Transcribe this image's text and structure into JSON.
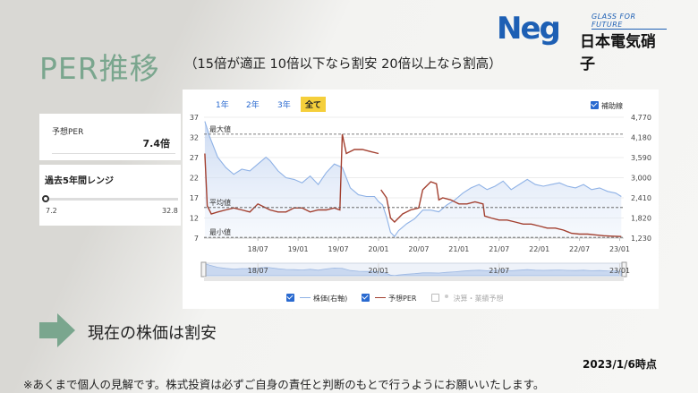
{
  "slide": {
    "title": "PER推移",
    "subtitle": "（15倍が適正 10倍以下なら割安 20倍以上なら割高）",
    "logo_mark": "Neg",
    "logo_tagline": "GLASS FOR FUTURE",
    "logo_name": "日本電気硝子",
    "conclusion": "現在の株価は割安",
    "date": "2023/1/6時点",
    "disclaimer": "※あくまで個人の見解です。株式投資は必ずご自身の責任と判断のもとで行うようにお願いいたします。"
  },
  "kpi": {
    "label": "予想PER",
    "value": "7.4倍"
  },
  "range": {
    "title": "過去5年間レンジ",
    "min": "7.2",
    "max": "32.8",
    "current": 7.4
  },
  "tabs": [
    {
      "label": "1年",
      "active": false
    },
    {
      "label": "2年",
      "active": false
    },
    {
      "label": "3年",
      "active": false
    },
    {
      "label": "全て",
      "active": true
    }
  ],
  "aux_label": "補助線",
  "legend": [
    {
      "label": "株価(右軸)",
      "color": "#8fb2e6",
      "checked": true
    },
    {
      "label": "予想PER",
      "color": "#a34030",
      "checked": true
    },
    {
      "label": "決算・業績予想",
      "color": "#bbbbbb",
      "checked": false
    }
  ],
  "chart_data": {
    "type": "line",
    "left_axis_ticks": [
      "37",
      "32",
      "27",
      "22",
      "17",
      "12",
      "7"
    ],
    "right_axis_ticks": [
      "4,770",
      "4,180",
      "3,590",
      "3,000",
      "2,410",
      "1,820",
      "1,230"
    ],
    "ylim_left": [
      7,
      37
    ],
    "ylim_right": [
      1230,
      4770
    ],
    "xlim": [
      2017.83,
      2023.05
    ],
    "x_ticks": [
      {
        "label": "18/07",
        "x": 2018.5
      },
      {
        "label": "19/01",
        "x": 2019.0
      },
      {
        "label": "19/07",
        "x": 2019.5
      },
      {
        "label": "20/01",
        "x": 2020.0
      },
      {
        "label": "20/07",
        "x": 2020.5
      },
      {
        "label": "21/01",
        "x": 2021.0
      },
      {
        "label": "21/07",
        "x": 2021.5
      },
      {
        "label": "22/01",
        "x": 2022.0
      },
      {
        "label": "22/07",
        "x": 2022.5
      },
      {
        "label": "23/01",
        "x": 2023.0
      }
    ],
    "navigator_ticks": [
      {
        "label": "18/07",
        "x": 2018.5
      },
      {
        "label": "20/01",
        "x": 2020.0
      },
      {
        "label": "21/07",
        "x": 2021.5
      },
      {
        "label": "23/01",
        "x": 2023.0
      }
    ],
    "reference_lines": [
      {
        "label": "最大値",
        "value": 32.8
      },
      {
        "label": "平均値",
        "value": 14.6
      },
      {
        "label": "最小値",
        "value": 7.2
      }
    ],
    "series": [
      {
        "name": "株価(右軸)",
        "axis": "right",
        "x": [
          2017.84,
          2017.9,
          2018.0,
          2018.1,
          2018.2,
          2018.3,
          2018.4,
          2018.5,
          2018.6,
          2018.65,
          2018.75,
          2018.85,
          2018.95,
          2019.05,
          2019.15,
          2019.25,
          2019.35,
          2019.45,
          2019.55,
          2019.65,
          2019.75,
          2019.85,
          2019.95,
          2020.0,
          2020.05,
          2020.1,
          2020.15,
          2020.2,
          2020.25,
          2020.35,
          2020.45,
          2020.55,
          2020.65,
          2020.75,
          2020.85,
          2020.95,
          2021.05,
          2021.15,
          2021.25,
          2021.35,
          2021.45,
          2021.55,
          2021.65,
          2021.75,
          2021.85,
          2021.95,
          2022.05,
          2022.15,
          2022.25,
          2022.35,
          2022.45,
          2022.55,
          2022.65,
          2022.75,
          2022.85,
          2022.95,
          2023.02
        ],
        "y": [
          4650,
          4200,
          3600,
          3300,
          3100,
          3250,
          3200,
          3400,
          3600,
          3500,
          3200,
          3000,
          2950,
          2850,
          3050,
          2800,
          3150,
          3400,
          3300,
          2700,
          2500,
          2450,
          2450,
          2300,
          2200,
          1850,
          1400,
          1280,
          1450,
          1650,
          1800,
          2050,
          2050,
          2000,
          2200,
          2350,
          2550,
          2700,
          2800,
          2650,
          2750,
          2900,
          2650,
          2800,
          2950,
          2800,
          2750,
          2800,
          2850,
          2750,
          2700,
          2800,
          2650,
          2700,
          2600,
          2550,
          2450
        ]
      },
      {
        "name": "予想PER",
        "axis": "left",
        "x": [
          2017.84,
          2017.87,
          2017.92,
          2018.0,
          2018.1,
          2018.2,
          2018.3,
          2018.4,
          2018.5,
          2018.6,
          2018.65,
          2018.75,
          2018.85,
          2018.95,
          2019.05,
          2019.15,
          2019.25,
          2019.35,
          2019.45,
          2019.52,
          2019.55,
          2019.6,
          2019.7,
          2019.8,
          2019.9,
          2020.0,
          2020.03,
          2020.03,
          2020.1,
          2020.15,
          2020.2,
          2020.3,
          2020.4,
          2020.5,
          2020.55,
          2020.65,
          2020.72,
          2020.75,
          2020.8,
          2020.9,
          2021.0,
          2021.1,
          2021.2,
          2021.3,
          2021.32,
          2021.4,
          2021.5,
          2021.6,
          2021.7,
          2021.8,
          2021.9,
          2022.0,
          2022.1,
          2022.2,
          2022.3,
          2022.4,
          2022.5,
          2022.6,
          2022.7,
          2022.8,
          2022.9,
          2023.02
        ],
        "y": [
          28,
          15,
          13,
          13.5,
          14,
          14.5,
          14,
          13.5,
          15.5,
          14.5,
          14,
          13.5,
          13.5,
          14.5,
          14.5,
          13.5,
          14,
          14,
          14.5,
          14,
          32.8,
          28,
          29,
          29,
          28.5,
          28,
          null,
          19,
          17,
          12,
          11,
          13,
          14,
          14.5,
          19,
          21,
          20.5,
          16.5,
          17,
          16.5,
          15.5,
          15.5,
          16,
          15.5,
          12.5,
          12,
          11.5,
          11.5,
          11,
          10.5,
          10.5,
          10,
          9.5,
          9.5,
          9,
          8.2,
          8,
          8,
          7.8,
          7.6,
          7.5,
          7.4
        ]
      }
    ]
  }
}
